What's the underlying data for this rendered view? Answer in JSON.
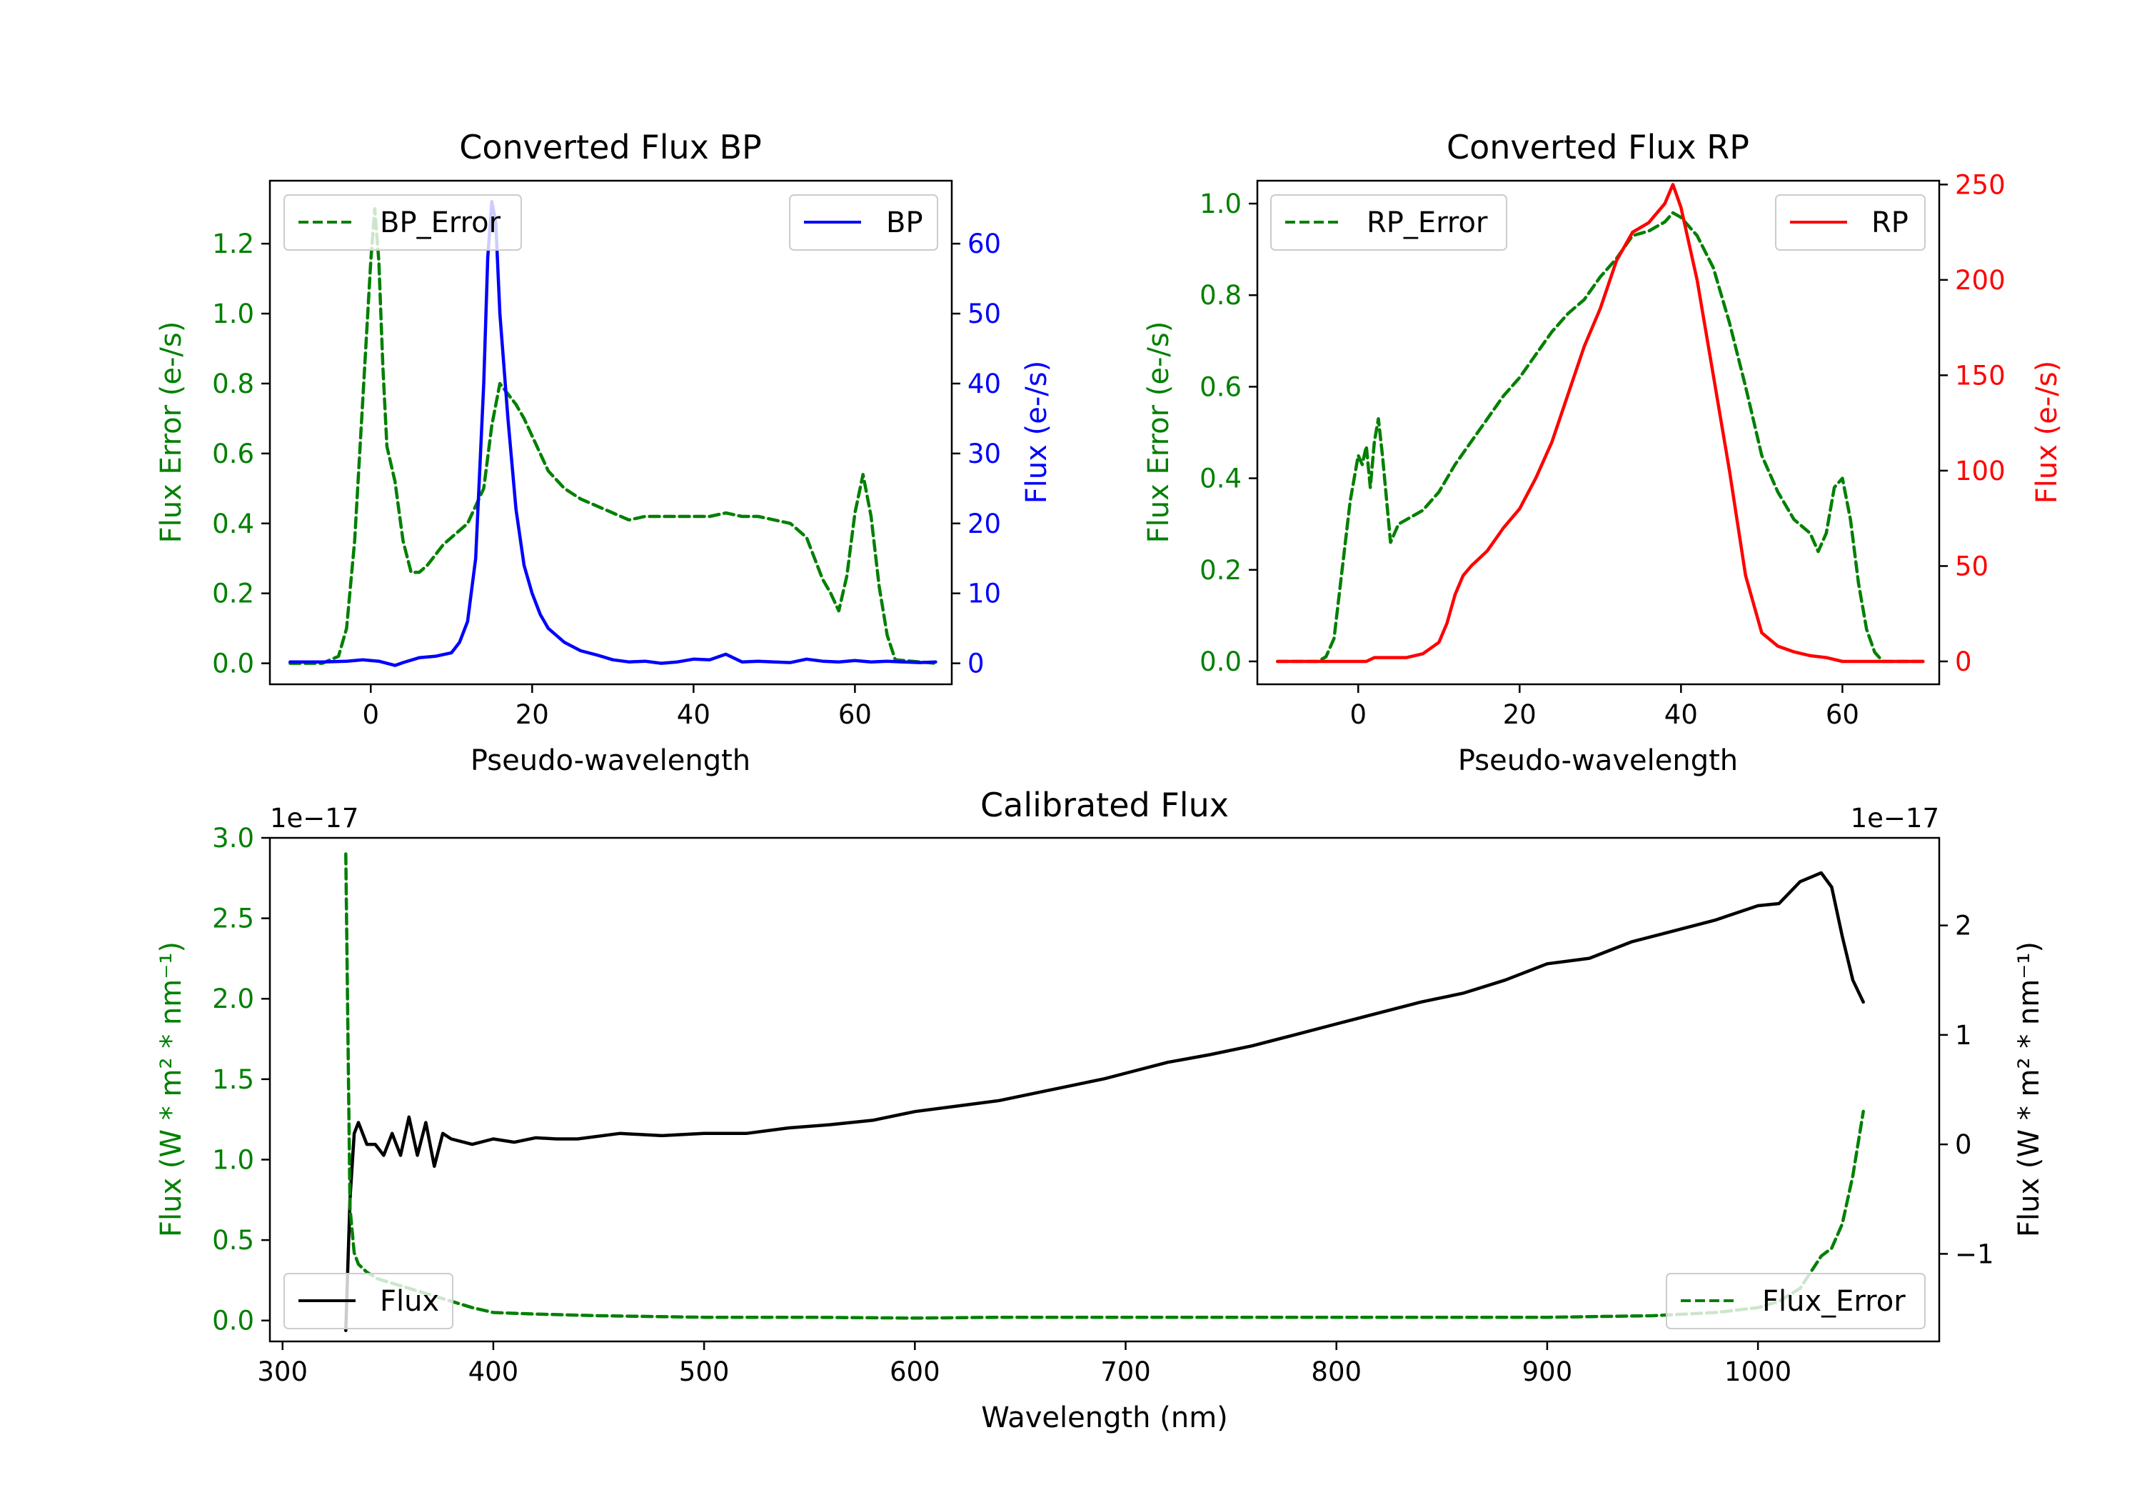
{
  "chart_data": [
    {
      "id": "bp",
      "type": "line",
      "title": "Converted Flux BP",
      "xlabel": "Pseudo-wavelength",
      "xlim": [
        -12.5,
        72
      ],
      "xticks": [
        0,
        20,
        40,
        60
      ],
      "left_axis": {
        "label": "Flux Error (e-/s)",
        "color": "#008000",
        "ylim": [
          -0.06,
          1.38
        ],
        "ticks": [
          0.0,
          0.2,
          0.4,
          0.6,
          0.8,
          1.0,
          1.2
        ],
        "tick_labels": [
          "0.0",
          "0.2",
          "0.4",
          "0.6",
          "0.8",
          "1.0",
          "1.2"
        ]
      },
      "right_axis": {
        "label": "Flux (e-/s)",
        "color": "#0000ff",
        "ylim": [
          -3,
          69
        ],
        "ticks": [
          0,
          10,
          20,
          30,
          40,
          50,
          60
        ],
        "tick_labels": [
          "0",
          "10",
          "20",
          "30",
          "40",
          "50",
          "60"
        ]
      },
      "series": [
        {
          "name": "BP_Error",
          "axis": "left",
          "color": "#008000",
          "style": "dashed",
          "x": [
            -10,
            -6,
            -4,
            -3,
            -2,
            -1,
            0,
            0.5,
            1,
            1.5,
            2,
            3,
            4,
            5,
            6,
            7,
            8,
            9,
            10,
            12,
            14,
            15,
            16,
            17,
            18,
            19,
            20,
            22,
            24,
            26,
            28,
            30,
            32,
            34,
            36,
            38,
            40,
            42,
            44,
            46,
            48,
            50,
            52,
            54,
            55,
            56,
            57,
            58,
            59,
            60,
            61,
            62,
            63,
            64,
            65,
            70
          ],
          "y": [
            0,
            0,
            0.02,
            0.1,
            0.35,
            0.75,
            1.15,
            1.3,
            1.15,
            0.85,
            0.62,
            0.52,
            0.35,
            0.26,
            0.26,
            0.28,
            0.31,
            0.34,
            0.36,
            0.4,
            0.5,
            0.68,
            0.8,
            0.77,
            0.74,
            0.7,
            0.65,
            0.55,
            0.5,
            0.47,
            0.45,
            0.43,
            0.41,
            0.42,
            0.42,
            0.42,
            0.42,
            0.42,
            0.43,
            0.42,
            0.42,
            0.41,
            0.4,
            0.36,
            0.3,
            0.24,
            0.2,
            0.15,
            0.25,
            0.43,
            0.54,
            0.42,
            0.22,
            0.08,
            0.01,
            0
          ]
        },
        {
          "name": "BP",
          "axis": "right",
          "color": "#0000ff",
          "style": "solid",
          "x": [
            -10,
            -6,
            -3,
            -1,
            1,
            3,
            4,
            6,
            8,
            10,
            11,
            12,
            13,
            14,
            14.5,
            15,
            15.5,
            16,
            17,
            18,
            19,
            20,
            21,
            22,
            24,
            26,
            28,
            30,
            32,
            34,
            36,
            38,
            40,
            42,
            44,
            46,
            48,
            50,
            52,
            54,
            56,
            58,
            60,
            62,
            64,
            66,
            68,
            70
          ],
          "y": [
            0.2,
            0.2,
            0.3,
            0.5,
            0.3,
            -0.3,
            0.1,
            0.8,
            1.0,
            1.5,
            3,
            6,
            15,
            40,
            58,
            66,
            63,
            50,
            35,
            22,
            14,
            10,
            7,
            5,
            3,
            1.8,
            1.2,
            0.5,
            0.2,
            0.3,
            0.0,
            0.2,
            0.6,
            0.5,
            1.3,
            0.2,
            0.3,
            0.2,
            0.1,
            0.6,
            0.3,
            0.2,
            0.4,
            0.2,
            0.3,
            0.2,
            0.1,
            0.2
          ]
        }
      ],
      "legend": [
        "BP_Error",
        "BP"
      ],
      "legend_position": [
        "upper left",
        "upper right"
      ]
    },
    {
      "id": "rp",
      "type": "line",
      "title": "Converted Flux RP",
      "xlabel": "Pseudo-wavelength",
      "xlim": [
        -12.5,
        72
      ],
      "xticks": [
        0,
        20,
        40,
        60
      ],
      "left_axis": {
        "label": "Flux Error (e-/s)",
        "color": "#008000",
        "ylim": [
          -0.05,
          1.05
        ],
        "ticks": [
          0.0,
          0.2,
          0.4,
          0.6,
          0.8,
          1.0
        ],
        "tick_labels": [
          "0.0",
          "0.2",
          "0.4",
          "0.6",
          "0.8",
          "1.0"
        ]
      },
      "right_axis": {
        "label": "Flux (e-/s)",
        "color": "#ff0000",
        "ylim": [
          -12,
          252
        ],
        "ticks": [
          0,
          50,
          100,
          150,
          200,
          250
        ],
        "tick_labels": [
          "0",
          "50",
          "100",
          "150",
          "200",
          "250"
        ]
      },
      "series": [
        {
          "name": "RP_Error",
          "axis": "left",
          "color": "#008000",
          "style": "dashed",
          "x": [
            -10,
            -5,
            -4,
            -3,
            -2,
            -1,
            0,
            0.5,
            1,
            1.5,
            2,
            2.5,
            3,
            4,
            5,
            6,
            7,
            8,
            10,
            12,
            14,
            16,
            18,
            20,
            22,
            24,
            26,
            28,
            30,
            32,
            34,
            36,
            38,
            39,
            40,
            42,
            44,
            46,
            48,
            50,
            52,
            54,
            56,
            57,
            58,
            59,
            60,
            61,
            62,
            63,
            64,
            65,
            70
          ],
          "y": [
            0,
            0,
            0.01,
            0.05,
            0.2,
            0.35,
            0.45,
            0.43,
            0.47,
            0.38,
            0.48,
            0.53,
            0.45,
            0.26,
            0.3,
            0.31,
            0.32,
            0.33,
            0.37,
            0.43,
            0.48,
            0.53,
            0.58,
            0.62,
            0.67,
            0.72,
            0.76,
            0.79,
            0.84,
            0.88,
            0.93,
            0.94,
            0.96,
            0.98,
            0.97,
            0.93,
            0.86,
            0.74,
            0.6,
            0.45,
            0.37,
            0.31,
            0.28,
            0.24,
            0.28,
            0.38,
            0.4,
            0.31,
            0.17,
            0.07,
            0.02,
            0,
            0
          ]
        },
        {
          "name": "RP",
          "axis": "right",
          "color": "#ff0000",
          "style": "solid",
          "x": [
            -10,
            -2,
            1,
            2,
            4,
            6,
            8,
            10,
            11,
            12,
            13,
            14,
            16,
            18,
            20,
            22,
            24,
            26,
            28,
            30,
            32,
            34,
            36,
            38,
            39,
            40,
            42,
            44,
            46,
            48,
            50,
            52,
            54,
            56,
            58,
            60,
            62,
            64,
            70
          ],
          "y": [
            0,
            0,
            0,
            2,
            2,
            2,
            4,
            10,
            20,
            35,
            45,
            50,
            58,
            70,
            80,
            96,
            115,
            140,
            165,
            185,
            210,
            225,
            230,
            240,
            250,
            238,
            200,
            150,
            100,
            45,
            15,
            8,
            5,
            3,
            2,
            0,
            0,
            0,
            0
          ]
        }
      ],
      "legend": [
        "RP_Error",
        "RP"
      ],
      "legend_position": [
        "upper left",
        "upper right"
      ]
    },
    {
      "id": "cal",
      "type": "line",
      "title": "Calibrated Flux",
      "xlabel": "Wavelength (nm)",
      "xlim": [
        294,
        1086
      ],
      "xticks": [
        300,
        400,
        500,
        600,
        700,
        800,
        900,
        1000
      ],
      "left_axis": {
        "label": "Flux (W * m² * nm⁻¹)",
        "color": "#008000",
        "ylim": [
          -0.13,
          3.0
        ],
        "offset_text": "1e−17",
        "ticks": [
          0.0,
          0.5,
          1.0,
          1.5,
          2.0,
          2.5,
          3.0
        ],
        "tick_labels": [
          "0.0",
          "0.5",
          "1.0",
          "1.5",
          "2.0",
          "2.5",
          "3.0"
        ]
      },
      "right_axis": {
        "label": "Flux (W * m² * nm⁻¹)",
        "color": "#000000",
        "ylim": [
          -1.8,
          2.8
        ],
        "offset_text": "1e−17",
        "ticks": [
          -1,
          0,
          1,
          2
        ],
        "tick_labels": [
          "−1",
          "0",
          "1",
          "2"
        ]
      },
      "series": [
        {
          "name": "Flux",
          "axis": "right",
          "color": "#000000",
          "style": "solid",
          "x": [
            330,
            332,
            334,
            336,
            340,
            344,
            348,
            352,
            356,
            360,
            364,
            368,
            372,
            376,
            380,
            390,
            400,
            410,
            420,
            430,
            440,
            460,
            480,
            500,
            520,
            540,
            560,
            580,
            600,
            620,
            640,
            650,
            660,
            670,
            680,
            690,
            700,
            720,
            740,
            760,
            780,
            800,
            820,
            840,
            860,
            880,
            900,
            920,
            940,
            960,
            980,
            1000,
            1010,
            1020,
            1030,
            1035,
            1040,
            1045,
            1050
          ],
          "y": [
            -1.7,
            -0.5,
            0.1,
            0.2,
            0.0,
            0.0,
            -0.1,
            0.1,
            -0.1,
            0.25,
            -0.1,
            0.2,
            -0.2,
            0.1,
            0.05,
            0.0,
            0.05,
            0.02,
            0.06,
            0.05,
            0.05,
            0.1,
            0.08,
            0.1,
            0.1,
            0.15,
            0.18,
            0.22,
            0.3,
            0.35,
            0.4,
            0.44,
            0.48,
            0.52,
            0.56,
            0.6,
            0.65,
            0.75,
            0.82,
            0.9,
            1.0,
            1.1,
            1.2,
            1.3,
            1.38,
            1.5,
            1.65,
            1.7,
            1.85,
            1.95,
            2.05,
            2.18,
            2.2,
            2.4,
            2.48,
            2.35,
            1.9,
            1.5,
            1.3
          ]
        },
        {
          "name": "Flux_Error",
          "axis": "left",
          "color": "#008000",
          "style": "dashed",
          "x": [
            330,
            332,
            334,
            336,
            340,
            345,
            350,
            360,
            370,
            380,
            390,
            400,
            420,
            450,
            500,
            550,
            600,
            640,
            650,
            700,
            800,
            900,
            950,
            980,
            1000,
            1010,
            1020,
            1030,
            1035,
            1040,
            1045,
            1050
          ],
          "y": [
            2.9,
            0.7,
            0.42,
            0.35,
            0.3,
            0.26,
            0.24,
            0.2,
            0.16,
            0.12,
            0.08,
            0.05,
            0.04,
            0.03,
            0.02,
            0.02,
            0.015,
            0.02,
            0.02,
            0.02,
            0.02,
            0.02,
            0.03,
            0.05,
            0.08,
            0.12,
            0.2,
            0.4,
            0.45,
            0.6,
            0.9,
            1.3
          ]
        }
      ],
      "legend": [
        "Flux",
        "Flux_Error"
      ],
      "legend_position": [
        "lower left",
        "lower right"
      ]
    }
  ]
}
